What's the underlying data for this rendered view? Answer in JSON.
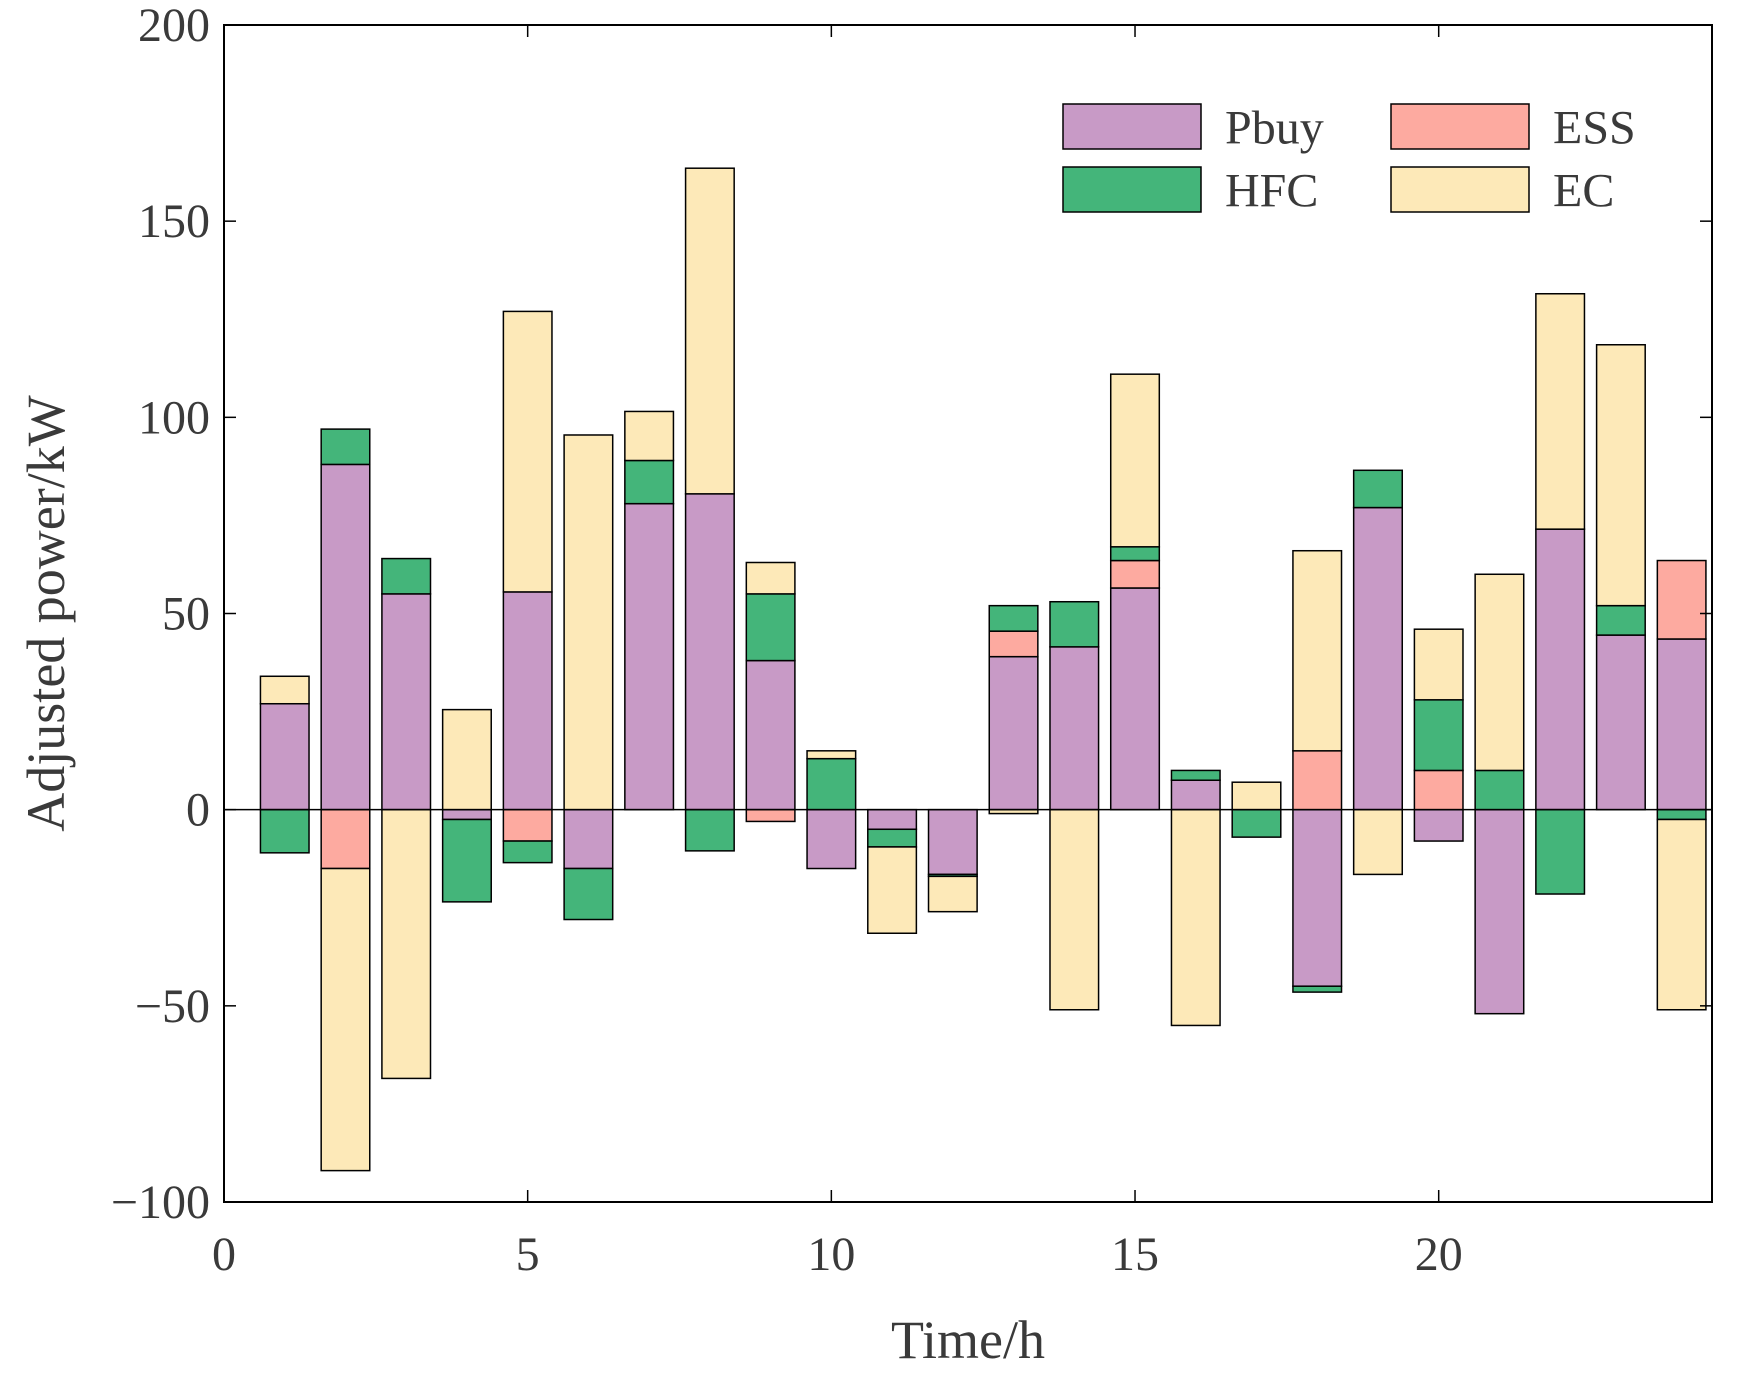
{
  "chart_data": {
    "type": "bar",
    "stacked": true,
    "xlabel": "Time/h",
    "ylabel": "Adjusted power/kW",
    "xlim": [
      0,
      24.5
    ],
    "ylim": [
      -100,
      200
    ],
    "xticks": [
      0,
      5,
      10,
      15,
      20
    ],
    "xtick_labels": [
      "0",
      "5",
      "10",
      "15",
      "20"
    ],
    "yticks": [
      -100,
      -50,
      0,
      50,
      100,
      150,
      200
    ],
    "ytick_labels": [
      "−100",
      "−50",
      "0",
      "50",
      "100",
      "150",
      "200"
    ],
    "grid": false,
    "legend_position": "top-right",
    "x": [
      1,
      2,
      3,
      4,
      5,
      6,
      7,
      8,
      9,
      10,
      11,
      12,
      13,
      14,
      15,
      16,
      17,
      18,
      19,
      20,
      21,
      22,
      23,
      24
    ],
    "series": [
      {
        "name": "Pbuy",
        "color": "#c89ac6",
        "values": [
          27,
          88,
          55,
          -2.5,
          55.5,
          -15,
          78,
          80.5,
          38,
          -15,
          -5,
          -16.5,
          39,
          41.5,
          56.5,
          7.5,
          0,
          -45,
          77,
          -8,
          -52,
          71.5,
          44.5,
          43.5
        ]
      },
      {
        "name": "ESS",
        "color": "#fdaaa0",
        "values": [
          0,
          -15,
          0,
          0,
          -8,
          0,
          0,
          0,
          -3,
          0,
          0,
          0,
          6.5,
          0,
          7,
          0,
          0,
          15,
          0,
          10,
          0,
          0,
          0,
          20
        ]
      },
      {
        "name": "HFC",
        "color": "#44b57a",
        "values": [
          -11,
          9,
          9,
          -21,
          -5.5,
          -13,
          11,
          -10.5,
          17,
          13,
          -4.5,
          -0.5,
          6.5,
          11.5,
          3.5,
          2.5,
          -7,
          -1.5,
          9.5,
          18,
          10,
          -21.5,
          7.5,
          -2.5
        ]
      },
      {
        "name": "EC",
        "color": "#fde9b8",
        "values": [
          7,
          -77,
          -68.5,
          25.5,
          71.5,
          95.5,
          12.5,
          83,
          8,
          2,
          -22,
          -9,
          -1,
          -51,
          44,
          -55,
          7,
          51,
          -16.5,
          18,
          50,
          60,
          66.5,
          -48.5
        ]
      }
    ],
    "legend": [
      {
        "name": "Pbuy",
        "color": "#c89ac6"
      },
      {
        "name": "ESS",
        "color": "#fdaaa0"
      },
      {
        "name": "HFC",
        "color": "#44b57a"
      },
      {
        "name": "EC",
        "color": "#fde9b8"
      }
    ]
  }
}
